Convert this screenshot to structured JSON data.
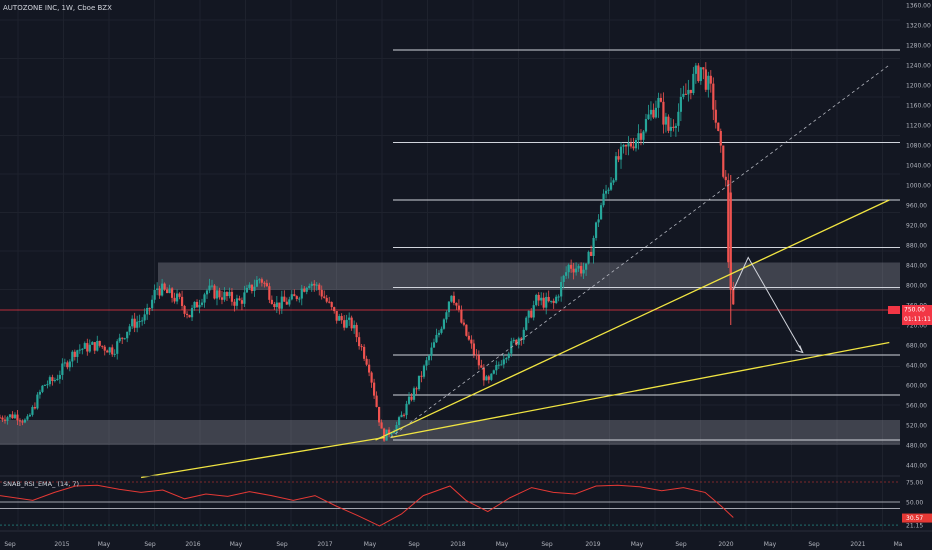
{
  "header": {
    "title": "AUTOZONE INC, 1W, Cboe BZX"
  },
  "price_axis": {
    "ticks": [
      "1360.00",
      "1320.00",
      "1280.00",
      "1240.00",
      "1200.00",
      "1160.00",
      "1120.00",
      "1080.00",
      "1040.00",
      "1000.00",
      "960.00",
      "920.00",
      "880.00",
      "840.00",
      "800.00",
      "760.00",
      "720.00",
      "680.00",
      "640.00",
      "600.00",
      "560.00",
      "520.00",
      "480.00",
      "440.00"
    ],
    "last_price_label": "750.00",
    "countdown_label": "01:11:11"
  },
  "time_axis": {
    "labels": [
      "Sep",
      "2015",
      "May",
      "Sep",
      "2016",
      "May",
      "Sep",
      "2017",
      "May",
      "Sep",
      "2018",
      "May",
      "Sep",
      "2019",
      "May",
      "Sep",
      "2020",
      "May",
      "Sep",
      "2021",
      "Ma"
    ]
  },
  "indicator": {
    "title": "SNAB_RSI_EMA_ (14, 7)",
    "ticks": [
      "75.00",
      "50.00",
      "21.15"
    ],
    "value_label": "30.57"
  },
  "colors": {
    "background": "#131722",
    "grid": "#1e222d",
    "up": "#26a69a",
    "down": "#ef5350",
    "trendline": "#f0e442",
    "level_line": "#d1d4dc",
    "zone_fill": "rgba(178,181,190,0.28)",
    "rsi_line": "#e53935",
    "price_marker": "#f23645",
    "dashed_trend": "#b2b5be"
  },
  "chart_data": {
    "type": "candlestick",
    "title": "AUTOZONE INC, 1W, Cboe BZX",
    "ylim": [
      420,
      1370
    ],
    "price_path": [
      [
        "2014-08-01",
        535
      ],
      [
        "2014-09-15",
        540
      ],
      [
        "2014-10-15",
        525
      ],
      [
        "2014-12-01",
        600
      ],
      [
        "2015-01-01",
        610
      ],
      [
        "2015-03-01",
        670
      ],
      [
        "2015-05-01",
        680
      ],
      [
        "2015-06-15",
        670
      ],
      [
        "2015-08-01",
        720
      ],
      [
        "2015-09-15",
        735
      ],
      [
        "2015-10-15",
        795
      ],
      [
        "2015-12-15",
        770
      ],
      [
        "2016-01-15",
        740
      ],
      [
        "2016-03-01",
        790
      ],
      [
        "2016-04-15",
        780
      ],
      [
        "2016-06-01",
        765
      ],
      [
        "2016-08-01",
        815
      ],
      [
        "2016-09-15",
        760
      ],
      [
        "2016-11-01",
        770
      ],
      [
        "2016-12-15",
        810
      ],
      [
        "2017-01-15",
        790
      ],
      [
        "2017-03-01",
        735
      ],
      [
        "2017-04-15",
        720
      ],
      [
        "2017-06-01",
        640
      ],
      [
        "2017-07-10",
        495
      ],
      [
        "2017-08-20",
        520
      ],
      [
        "2017-10-15",
        600
      ],
      [
        "2017-12-15",
        705
      ],
      [
        "2018-01-20",
        790
      ],
      [
        "2018-02-20",
        715
      ],
      [
        "2018-04-01",
        650
      ],
      [
        "2018-05-01",
        600
      ],
      [
        "2018-06-15",
        660
      ],
      [
        "2018-08-01",
        700
      ],
      [
        "2018-09-15",
        770
      ],
      [
        "2018-11-01",
        760
      ],
      [
        "2018-12-15",
        840
      ],
      [
        "2019-02-01",
        830
      ],
      [
        "2019-03-15",
        960
      ],
      [
        "2019-05-01",
        1050
      ],
      [
        "2019-06-15",
        1090
      ],
      [
        "2019-07-15",
        1120
      ],
      [
        "2019-08-20",
        1170
      ],
      [
        "2019-09-20",
        1110
      ],
      [
        "2019-10-20",
        1150
      ],
      [
        "2019-11-20",
        1200
      ],
      [
        "2019-12-20",
        1235
      ],
      [
        "2020-01-20",
        1180
      ],
      [
        "2020-02-10",
        1080
      ],
      [
        "2020-02-28",
        1000
      ],
      [
        "2020-03-06",
        850
      ],
      [
        "2020-03-20",
        750
      ]
    ],
    "horizontal_levels": [
      1270,
      1085,
      970,
      875,
      795,
      660,
      580,
      490
    ],
    "supply_zone": [
      790,
      845
    ],
    "demand_zone": [
      480,
      530
    ],
    "trendlines": [
      {
        "from": [
          "2015-09-01",
          415
        ],
        "to": [
          "2017-07-15",
          495
        ]
      },
      {
        "from": [
          "2017-08-01",
          495
        ],
        "to": [
          "2021-06-01",
          685
        ]
      },
      {
        "from": [
          "2017-06-20",
          490
        ],
        "to": [
          "2021-06-01",
          970
        ]
      }
    ],
    "dashed_trendline": {
      "from": [
        "2017-08-01",
        495
      ],
      "to": [
        "2021-06-01",
        1240
      ]
    },
    "projection_arrow": [
      [
        "2020-03-20",
        790
      ],
      [
        "2020-05-01",
        855
      ],
      [
        "2020-10-01",
        665
      ]
    ],
    "last_price": 750,
    "rsi": {
      "name": "SNAB_RSI_EMA_ (14, 7)",
      "ylim": [
        15,
        80
      ],
      "levels": [
        75,
        50,
        21.15
      ],
      "current": 30.57,
      "path": [
        [
          "2014-08-01",
          58
        ],
        [
          "2014-11-01",
          52
        ],
        [
          "2015-01-01",
          62
        ],
        [
          "2015-03-01",
          70
        ],
        [
          "2015-05-01",
          71
        ],
        [
          "2015-07-01",
          66
        ],
        [
          "2015-09-01",
          62
        ],
        [
          "2015-11-01",
          65
        ],
        [
          "2016-01-01",
          54
        ],
        [
          "2016-03-01",
          60
        ],
        [
          "2016-05-01",
          57
        ],
        [
          "2016-07-01",
          63
        ],
        [
          "2016-09-01",
          58
        ],
        [
          "2016-11-01",
          52
        ],
        [
          "2017-01-01",
          58
        ],
        [
          "2017-03-01",
          45
        ],
        [
          "2017-05-01",
          33
        ],
        [
          "2017-07-01",
          20
        ],
        [
          "2017-09-01",
          35
        ],
        [
          "2017-11-01",
          58
        ],
        [
          "2018-01-15",
          70
        ],
        [
          "2018-03-01",
          52
        ],
        [
          "2018-05-01",
          38
        ],
        [
          "2018-07-01",
          55
        ],
        [
          "2018-09-01",
          68
        ],
        [
          "2018-11-01",
          62
        ],
        [
          "2019-01-01",
          60
        ],
        [
          "2019-03-01",
          70
        ],
        [
          "2019-05-01",
          71
        ],
        [
          "2019-07-01",
          69
        ],
        [
          "2019-09-01",
          64
        ],
        [
          "2019-11-01",
          68
        ],
        [
          "2020-01-01",
          62
        ],
        [
          "2020-02-15",
          45
        ],
        [
          "2020-03-20",
          30.57
        ]
      ]
    },
    "x_start": "2014-08-01",
    "x_end": "2021-07-01"
  }
}
